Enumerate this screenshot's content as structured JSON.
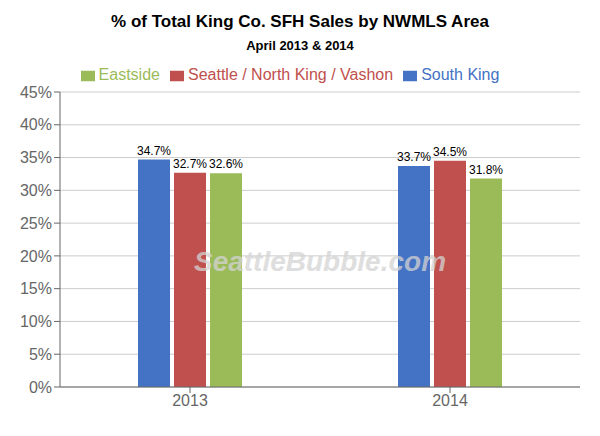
{
  "chart_data": {
    "type": "bar",
    "title": "% of Total King Co. SFH Sales by NWMLS Area",
    "subtitle": "April 2013 & 2014",
    "categories": [
      "2013",
      "2014"
    ],
    "series": [
      {
        "name": "South King",
        "color": "#4472C4",
        "values": [
          34.7,
          33.7
        ],
        "value_labels": [
          "34.7%",
          "33.7%"
        ]
      },
      {
        "name": "Seattle / North King / Vashon",
        "color": "#C0504D",
        "values": [
          32.7,
          34.5
        ],
        "value_labels": [
          "32.7%",
          "34.5%"
        ]
      },
      {
        "name": "Eastside",
        "color": "#9BBB59",
        "values": [
          32.6,
          31.8
        ],
        "value_labels": [
          "32.6%",
          "31.8%"
        ]
      }
    ],
    "ylim": [
      0,
      45
    ],
    "yticks": [
      {
        "value": 0,
        "label": "0%"
      },
      {
        "value": 5,
        "label": "5%"
      },
      {
        "value": 10,
        "label": "10%"
      },
      {
        "value": 15,
        "label": "15%"
      },
      {
        "value": 20,
        "label": "20%"
      },
      {
        "value": 25,
        "label": "25%"
      },
      {
        "value": 30,
        "label": "30%"
      },
      {
        "value": 35,
        "label": "35%"
      },
      {
        "value": 40,
        "label": "40%"
      },
      {
        "value": 45,
        "label": "45%"
      }
    ],
    "grid": true,
    "legend": "top",
    "data_labels": true,
    "annotations": [
      "SeattleBubble.com"
    ]
  }
}
